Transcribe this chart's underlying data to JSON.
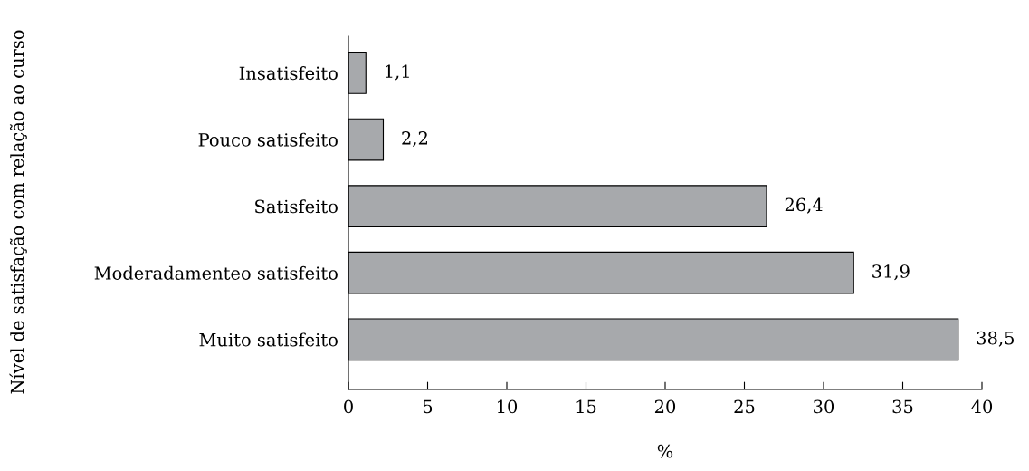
{
  "chart_data": {
    "type": "bar",
    "orientation": "horizontal",
    "xlabel": "%",
    "ylabel": "Nível de satisfação com relação ao curso",
    "categories": [
      "Insatisfeito",
      "Pouco satisfeito",
      "Satisfeito",
      "Moderadamenteo satisfeito",
      "Muito satisfeito"
    ],
    "values": [
      1.1,
      2.2,
      26.4,
      31.9,
      38.5
    ],
    "value_labels": [
      "1,1",
      "2,2",
      "26,4",
      "31,9",
      "38,5"
    ],
    "color": "#a7a9ac",
    "xlim": [
      0,
      40
    ],
    "xticks": [
      0,
      5,
      10,
      15,
      20,
      25,
      30,
      35,
      40
    ],
    "grid": false,
    "legend": false
  }
}
